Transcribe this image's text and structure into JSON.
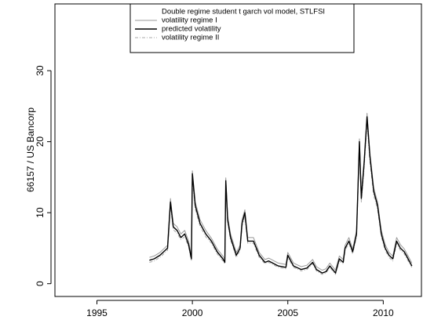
{
  "chart_data": {
    "type": "line",
    "legend_title": "Double regime student t garch vol model, STLFSI",
    "y_label": "66157 / US Bancorp",
    "x": [
      1997.75,
      1998.0,
      1998.3,
      1998.5,
      1998.7,
      1998.85,
      1999.0,
      1999.2,
      1999.4,
      1999.6,
      1999.8,
      1999.95,
      2000.0,
      2000.15,
      2000.4,
      2000.7,
      2001.0,
      2001.3,
      2001.6,
      2001.7,
      2001.75,
      2001.85,
      2002.0,
      2002.3,
      2002.5,
      2002.6,
      2002.75,
      2002.9,
      2003.2,
      2003.5,
      2003.8,
      2004.0,
      2004.5,
      2004.9,
      2005.0,
      2005.3,
      2005.7,
      2006.0,
      2006.3,
      2006.5,
      2006.8,
      2007.0,
      2007.2,
      2007.5,
      2007.7,
      2007.9,
      2008.0,
      2008.2,
      2008.4,
      2008.6,
      2008.75,
      2008.85,
      2009.0,
      2009.15,
      2009.3,
      2009.5,
      2009.7,
      2009.9,
      2010.1,
      2010.3,
      2010.5,
      2010.7,
      2010.9,
      2011.1,
      2011.3,
      2011.5
    ],
    "series": [
      {
        "name": "volatility regime I",
        "color": "#999999",
        "dash": "none",
        "values": [
          3.7,
          3.9,
          4.4,
          4.9,
          5.4,
          12.0,
          8.5,
          8.0,
          7.0,
          7.5,
          6.0,
          3.9,
          15.9,
          11.5,
          9.0,
          7.5,
          6.4,
          4.9,
          3.9,
          3.4,
          14.9,
          9.5,
          7.0,
          4.4,
          5.4,
          9.0,
          10.4,
          6.5,
          6.5,
          4.4,
          3.4,
          3.6,
          2.9,
          2.7,
          4.4,
          2.9,
          2.4,
          2.6,
          3.4,
          2.4,
          1.9,
          2.1,
          2.9,
          1.9,
          3.9,
          3.4,
          5.4,
          6.5,
          4.9,
          7.5,
          20.4,
          12.5,
          17.5,
          24.0,
          18.5,
          13.5,
          11.5,
          7.5,
          5.5,
          4.4,
          3.9,
          6.5,
          5.5,
          4.9,
          3.9,
          2.9
        ]
      },
      {
        "name": "predicted volatility",
        "color": "#000000",
        "dash": "none",
        "values": [
          3.3,
          3.5,
          4.0,
          4.5,
          5.0,
          11.5,
          8.0,
          7.5,
          6.5,
          7.0,
          5.5,
          3.5,
          15.5,
          11.0,
          8.5,
          7.0,
          6.0,
          4.5,
          3.5,
          3.0,
          14.5,
          9.0,
          6.5,
          4.0,
          5.0,
          8.5,
          10.0,
          6.0,
          6.0,
          4.0,
          3.0,
          3.2,
          2.5,
          2.3,
          4.0,
          2.5,
          2.0,
          2.2,
          3.0,
          2.0,
          1.5,
          1.7,
          2.5,
          1.5,
          3.5,
          3.0,
          5.0,
          6.0,
          4.5,
          7.0,
          20.0,
          12.0,
          17.0,
          23.5,
          18.0,
          13.0,
          11.0,
          7.0,
          5.0,
          4.0,
          3.5,
          6.0,
          5.0,
          4.5,
          3.5,
          2.5
        ]
      },
      {
        "name": "volatility regime II",
        "color": "#aaaaaa",
        "dash": "4 2 1 2",
        "values": [
          3.0,
          3.2,
          3.7,
          4.2,
          4.7,
          11.0,
          7.6,
          7.1,
          6.2,
          6.6,
          5.2,
          3.2,
          14.8,
          10.5,
          8.1,
          6.6,
          5.7,
          4.2,
          3.2,
          2.8,
          13.9,
          8.6,
          6.2,
          3.7,
          4.7,
          8.1,
          9.5,
          5.7,
          5.7,
          3.7,
          2.8,
          3.0,
          2.3,
          2.1,
          3.7,
          2.3,
          1.8,
          2.0,
          2.8,
          1.8,
          1.3,
          1.5,
          2.3,
          1.3,
          3.2,
          2.8,
          4.7,
          5.7,
          4.2,
          6.6,
          19.2,
          11.5,
          16.3,
          22.6,
          17.3,
          12.4,
          10.5,
          6.6,
          4.7,
          3.7,
          3.2,
          5.7,
          4.7,
          4.2,
          3.2,
          2.3
        ]
      }
    ],
    "xlim": [
      1992.8,
      2012.0
    ],
    "xticks": [
      1995,
      2000,
      2005,
      2010
    ],
    "ylim": [
      -1.8,
      39.4
    ],
    "yticks": [
      0,
      10,
      20,
      30
    ]
  }
}
